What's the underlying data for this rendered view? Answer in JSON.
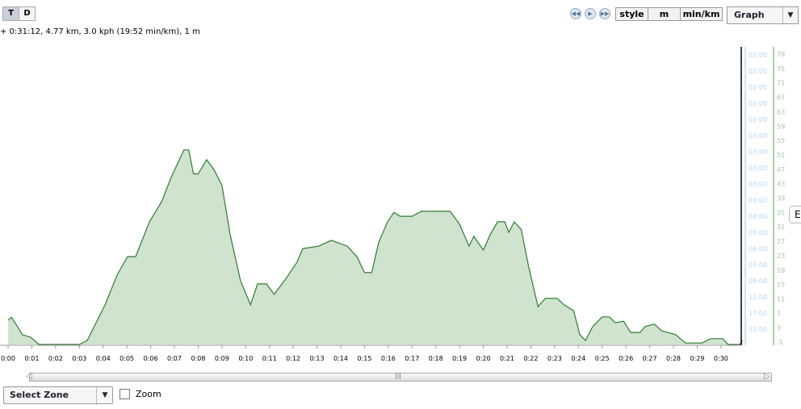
{
  "toolbar": {
    "t_label": "T",
    "d_label": "D",
    "style_label": "style",
    "unit_label": "m",
    "pace_label": "min/km",
    "view_select": "Graph",
    "nav_icons": [
      "rewind-icon",
      "play-icon",
      "fast-forward-icon"
    ]
  },
  "summary": "+ 0:31:12, 4.77 km, 3.0 kph (19:52 min/km), 1 m",
  "side_tab": "E",
  "bottom": {
    "zone_select": "Select Zone",
    "zoom_label": "Zoom",
    "zoom_checked": false
  },
  "chart_data": {
    "type": "area",
    "xlim": [
      0,
      31.2
    ],
    "ylim": [
      -1,
      79
    ],
    "x_ticks": [
      "0:00",
      "0:01",
      "0:02",
      "0:03",
      "0:04",
      "0:05",
      "0:06",
      "0:07",
      "0:08",
      "0:09",
      "0:10",
      "0:11",
      "0:12",
      "0:13",
      "0:14",
      "0:15",
      "0:16",
      "0:17",
      "0:18",
      "0:19",
      "0:20",
      "0:21",
      "0:22",
      "0:23",
      "0:24",
      "0:25",
      "0:26",
      "0:27",
      "0:28",
      "0:29",
      "0:30"
    ],
    "elevation_ticks": [
      "79",
      "75",
      "71",
      "67",
      "63",
      "59",
      "55",
      "51",
      "47",
      "43",
      "39",
      "35",
      "31",
      "27",
      "23",
      "19",
      "15",
      "11",
      "7",
      "3",
      "-1"
    ],
    "pace_ticks": [
      "02:00",
      "02:00",
      "02:00",
      "02:00",
      "02:00",
      "03:00",
      "03:00",
      "03:00",
      "03:00",
      "04:00",
      "04:00",
      "05:00",
      "06:00",
      "07:00",
      "08:00",
      "11:00",
      "17:00",
      "33:00"
    ],
    "colors": {
      "line": "#2e7d2e",
      "fill": "#cfe3cf",
      "pace_axis": "#cfe2f2",
      "elev_axis": "#a8d4a8"
    },
    "x": [
      0,
      0.14,
      0.4,
      0.6,
      0.95,
      1.3,
      3.0,
      3.33,
      4.08,
      4.6,
      5.03,
      5.37,
      5.95,
      6.46,
      6.86,
      7.4,
      7.6,
      7.8,
      8.0,
      8.36,
      8.66,
      9.0,
      9.34,
      9.78,
      10.2,
      10.5,
      10.87,
      11.2,
      11.7,
      12.16,
      12.4,
      13.08,
      13.6,
      14.27,
      14.68,
      15.0,
      15.3,
      15.6,
      15.97,
      16.24,
      16.5,
      17.0,
      17.4,
      18.0,
      18.6,
      19.0,
      19.4,
      19.6,
      20.0,
      20.3,
      20.6,
      20.9,
      21.07,
      21.3,
      21.6,
      21.9,
      22.3,
      22.6,
      23.1,
      23.4,
      23.8,
      24.06,
      24.3,
      24.6,
      25.0,
      25.3,
      25.55,
      25.9,
      26.2,
      26.6,
      26.8,
      27.2,
      27.5,
      28.1,
      28.5,
      29.2,
      29.56,
      30.07,
      30.3,
      30.8,
      30.9
    ],
    "y": [
      5.7,
      6.5,
      3.9,
      1.7,
      1,
      -1,
      -1,
      0.1,
      9.9,
      18.3,
      23.2,
      23.2,
      32.8,
      38.3,
      45,
      52.6,
      52.6,
      46,
      46,
      49.9,
      47.2,
      42.8,
      29.4,
      16.6,
      9.9,
      15.7,
      15.7,
      12.8,
      17.2,
      21.7,
      25.4,
      26.1,
      27.7,
      26.1,
      23.2,
      18.8,
      18.8,
      27.2,
      32.8,
      35.4,
      34.3,
      34.3,
      35.7,
      35.7,
      35.7,
      32.1,
      26.1,
      28.8,
      25,
      29.4,
      32.8,
      32.8,
      29.9,
      32.8,
      30.6,
      20.6,
      9.4,
      11.7,
      11.7,
      9.9,
      8.3,
      1.7,
      0.1,
      3.9,
      6.6,
      6.6,
      5,
      5.4,
      2.3,
      2.3,
      3.9,
      4.6,
      2.8,
      1.7,
      -0.6,
      -0.6,
      0.6,
      0.6,
      -1,
      -1,
      0.1
    ]
  }
}
